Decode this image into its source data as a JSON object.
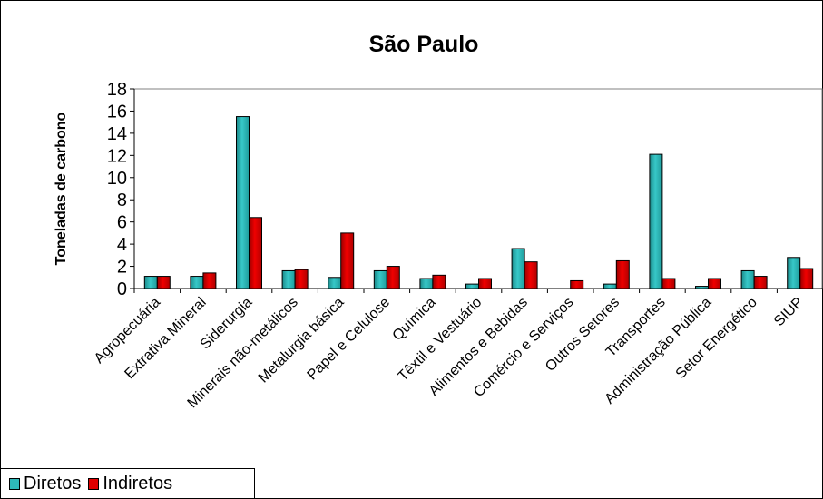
{
  "chart_data": {
    "type": "bar",
    "title": "São Paulo",
    "xlabel": "",
    "ylabel": "Toneladas de carbono",
    "ylim": [
      0,
      18
    ],
    "yticks": [
      0,
      2,
      4,
      6,
      8,
      10,
      12,
      14,
      16,
      18
    ],
    "grid": false,
    "legend_position": "bottom-left",
    "categories": [
      "Agropecuária",
      "Extrativa Mineral",
      "Siderurgia",
      "Minerais não-metálicos",
      "Metalurgia básica",
      "Papel e Celulose",
      "Química",
      "Têxtil e Vestuário",
      "Alimentos e Bebidas",
      "Comércio e Serviços",
      "Outros Setores",
      "Transportes",
      "Administração Pública",
      "Setor Energético",
      "SIUP"
    ],
    "series": [
      {
        "name": "Diretos",
        "color": "#2EB8B8",
        "values": [
          1.1,
          1.1,
          15.5,
          1.6,
          1.0,
          1.6,
          0.9,
          0.4,
          3.6,
          0.0,
          0.4,
          12.1,
          0.2,
          1.6,
          2.8
        ]
      },
      {
        "name": "Indiretos",
        "color": "#E00000",
        "values": [
          1.1,
          1.4,
          6.4,
          1.7,
          5.0,
          2.0,
          1.2,
          0.9,
          2.4,
          0.7,
          2.5,
          0.9,
          0.9,
          1.1,
          1.8
        ]
      }
    ]
  }
}
